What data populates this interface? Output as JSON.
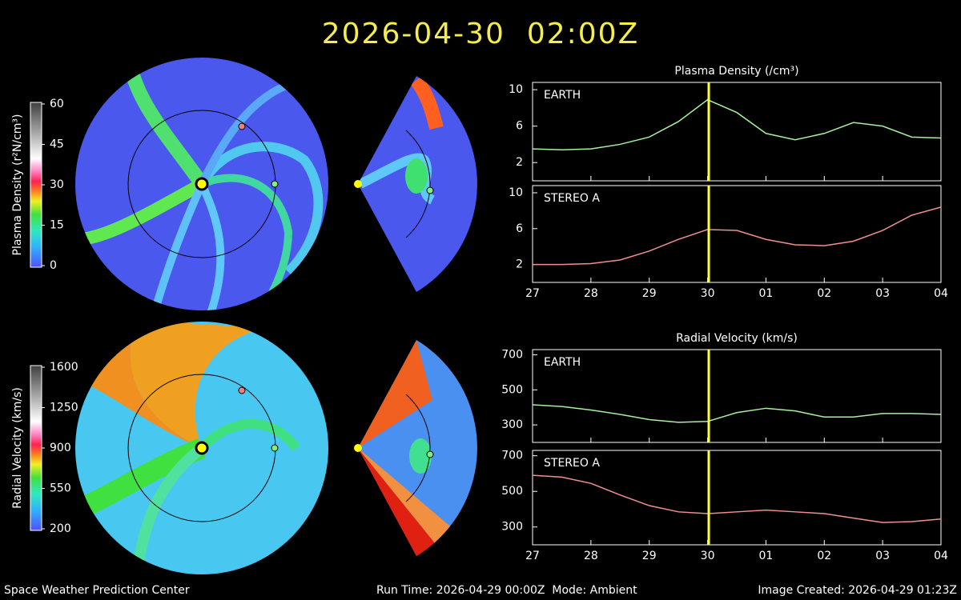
{
  "header": {
    "title": "2026-04-30  02:00Z"
  },
  "footer": {
    "left": "Space Weather Prediction Center",
    "center": "Run Time: 2026-04-29 00:00Z  Mode: Ambient",
    "right": "Image Created: 2026-04-29 01:23Z"
  },
  "colorbars": [
    {
      "label": "Plasma Density (r²N/cm³)",
      "lim": [
        0,
        60
      ],
      "ticks": [
        0,
        15,
        30,
        45,
        60
      ]
    },
    {
      "label": "Radial Velocity (km/s)",
      "lim": [
        200,
        1600
      ],
      "ticks": [
        200,
        550,
        900,
        1250,
        1600
      ]
    }
  ],
  "chart_data": [
    {
      "type": "line",
      "title": "Plasma Density (/cm³)",
      "xlim": [
        0,
        7
      ],
      "xticks": [
        0,
        1,
        2,
        3,
        4,
        5,
        6,
        7
      ],
      "ylim": [
        0,
        10.8
      ],
      "yticks": [
        2,
        6,
        10
      ],
      "now_x": 3.02,
      "x": [
        0,
        0.5,
        1,
        1.5,
        2,
        2.5,
        3,
        3.5,
        4,
        4.5,
        5,
        5.5,
        6,
        6.5,
        7
      ],
      "series": [
        {
          "name": "EARTH",
          "color": "#a8f0a0",
          "values": [
            3.5,
            3.4,
            3.5,
            4.0,
            4.8,
            6.5,
            8.9,
            7.5,
            5.2,
            4.5,
            5.2,
            6.4,
            6.0,
            4.8,
            4.7
          ]
        }
      ]
    },
    {
      "type": "line",
      "xlim": [
        0,
        7
      ],
      "xticks": [
        {
          "value": 0,
          "label": "27"
        },
        {
          "value": 1,
          "label": "28"
        },
        {
          "value": 2,
          "label": "29"
        },
        {
          "value": 3,
          "label": "30"
        },
        {
          "value": 4,
          "label": "01"
        },
        {
          "value": 5,
          "label": "02"
        },
        {
          "value": 6,
          "label": "03"
        },
        {
          "value": 7,
          "label": "04"
        }
      ],
      "ylim": [
        0,
        10.8
      ],
      "yticks": [
        2,
        6,
        10
      ],
      "now_x": 3.02,
      "x": [
        0,
        0.5,
        1,
        1.5,
        2,
        2.5,
        3,
        3.5,
        4,
        4.5,
        5,
        5.5,
        6,
        6.5,
        7
      ],
      "series": [
        {
          "name": "STEREO A",
          "color": "#f09090",
          "values": [
            2.0,
            2.0,
            2.1,
            2.5,
            3.5,
            4.8,
            5.9,
            5.8,
            4.8,
            4.2,
            4.1,
            4.6,
            5.8,
            7.5,
            8.4
          ]
        }
      ]
    },
    {
      "type": "line",
      "title": "Radial Velocity (km/s)",
      "xlim": [
        0,
        7
      ],
      "xticks": [
        0,
        1,
        2,
        3,
        4,
        5,
        6,
        7
      ],
      "ylim": [
        200,
        730
      ],
      "yticks": [
        300,
        500,
        700
      ],
      "now_x": 3.02,
      "x": [
        0,
        0.5,
        1,
        1.5,
        2,
        2.5,
        3,
        3.5,
        4,
        4.5,
        5,
        5.5,
        6,
        6.5,
        7
      ],
      "series": [
        {
          "name": "EARTH",
          "color": "#a8f0a0",
          "values": [
            415,
            405,
            385,
            360,
            330,
            315,
            320,
            370,
            395,
            380,
            345,
            345,
            365,
            365,
            360
          ]
        }
      ]
    },
    {
      "type": "line",
      "xlim": [
        0,
        7
      ],
      "xticks": [
        {
          "value": 0,
          "label": "27"
        },
        {
          "value": 1,
          "label": "28"
        },
        {
          "value": 2,
          "label": "29"
        },
        {
          "value": 3,
          "label": "30"
        },
        {
          "value": 4,
          "label": "01"
        },
        {
          "value": 5,
          "label": "02"
        },
        {
          "value": 6,
          "label": "03"
        },
        {
          "value": 7,
          "label": "04"
        }
      ],
      "ylim": [
        200,
        730
      ],
      "yticks": [
        300,
        500,
        700
      ],
      "now_x": 3.02,
      "x": [
        0,
        0.5,
        1,
        1.5,
        2,
        2.5,
        3,
        3.5,
        4,
        4.5,
        5,
        5.5,
        6,
        6.5,
        7
      ],
      "series": [
        {
          "name": "STEREO A",
          "color": "#f09090",
          "values": [
            590,
            580,
            545,
            480,
            420,
            385,
            375,
            385,
            395,
            385,
            375,
            350,
            325,
            330,
            345
          ]
        }
      ]
    }
  ]
}
